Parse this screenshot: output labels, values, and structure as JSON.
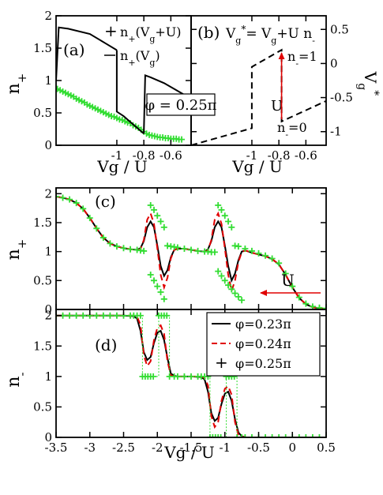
{
  "chart_data": [
    {
      "panel": "(a)",
      "type": "line",
      "xlabel": "Vg / U",
      "ylabel": "n+",
      "xlim": [
        -1.45,
        -0.45
      ],
      "ylim": [
        0,
        2
      ],
      "xticks": [
        -1,
        -0.8,
        -0.6
      ],
      "xtick_labels": [
        "-1",
        "-0.8",
        "-0.6"
      ],
      "yticks": [
        0,
        0.5,
        1,
        1.5,
        2
      ],
      "ytick_labels": [
        "0",
        "0.5",
        "1",
        "1.5",
        "2"
      ],
      "annotation": "φ = 0.25π",
      "series": [
        {
          "name": "n+(Vg+U)",
          "style": "markers",
          "color": "#33dd33",
          "x": [
            -1.44,
            -1.42,
            -1.4,
            -1.38,
            -1.36,
            -1.34,
            -1.32,
            -1.3,
            -1.28,
            -1.26,
            -1.24,
            -1.22,
            -1.2,
            -1.18,
            -1.16,
            -1.14,
            -1.12,
            -1.1,
            -1.08,
            -1.06,
            -1.04,
            -1.02,
            -1.0,
            -0.98,
            -0.96,
            -0.94,
            -0.92,
            -0.9,
            -0.88,
            -0.86,
            -0.84,
            -0.82,
            -0.8,
            -0.78,
            -0.76,
            -0.74,
            -0.72,
            -0.7,
            -0.68,
            -0.66,
            -0.64,
            -0.62,
            -0.6,
            -0.58,
            -0.56,
            -0.54,
            -0.52
          ],
          "y": [
            0.87,
            0.85,
            0.83,
            0.81,
            0.79,
            0.77,
            0.75,
            0.72,
            0.7,
            0.68,
            0.66,
            0.63,
            0.61,
            0.59,
            0.57,
            0.55,
            0.53,
            0.51,
            0.49,
            0.47,
            0.45,
            0.44,
            0.42,
            0.4,
            0.39,
            0.37,
            0.35,
            0.34,
            0.31,
            0.29,
            0.27,
            0.24,
            0.21,
            0.18,
            0.16,
            0.15,
            0.14,
            0.13,
            0.12,
            0.12,
            0.11,
            0.11,
            0.1,
            0.1,
            0.1,
            0.09,
            0.09
          ]
        },
        {
          "name": "n+(Vg)",
          "style": "line",
          "color": "#000000",
          "segments": [
            {
              "x": [
                -1.45,
                -1.43,
                -1.36,
                -1.2,
                -1.08,
                -1.0
              ],
              "y": [
                1.0,
                1.82,
                1.8,
                1.72,
                1.57,
                1.47
              ]
            },
            {
              "x": [
                -1.0,
                -1.0,
                -0.95,
                -0.9,
                -0.85,
                -0.8
              ],
              "y": [
                1.47,
                0.52,
                0.45,
                0.36,
                0.27,
                0.18
              ]
            },
            {
              "x": [
                -0.8,
                -0.79,
                -0.75,
                -0.65,
                -0.55,
                -0.45
              ],
              "y": [
                0.18,
                1.08,
                1.05,
                0.96,
                0.84,
                0.72
              ]
            }
          ]
        }
      ]
    },
    {
      "panel": "(b)",
      "type": "line",
      "xlabel": "Vg / U",
      "ylabel": "Vg*",
      "title_formula": "Vg* = Vg+U n-",
      "xlim": [
        -1.45,
        -0.45
      ],
      "ylim": [
        -1.2,
        0.7
      ],
      "xticks": [
        -1,
        -0.8,
        -0.6
      ],
      "xtick_labels": [
        "-1",
        "-0.8",
        "-0.6"
      ],
      "yticks": [
        -1,
        -0.5,
        0,
        0.5
      ],
      "ytick_labels": [
        "-1",
        "-0.5",
        "0",
        "0.5"
      ],
      "annotations": {
        "upper": "n-=1",
        "lower": "n-=0",
        "arrow": "U"
      },
      "series": [
        {
          "name": "Vg*",
          "style": "dashed",
          "color": "#000000",
          "x": [
            -1.45,
            -1.0,
            -1.0,
            -0.78,
            -0.78,
            -0.45
          ],
          "y": [
            -1.2,
            -0.95,
            -0.05,
            0.2,
            -0.85,
            -0.55
          ]
        }
      ]
    },
    {
      "panel": "(c)",
      "type": "line",
      "xlabel": "",
      "ylabel": "n+",
      "xlim": [
        -3.5,
        0.5
      ],
      "ylim": [
        0,
        2.1
      ],
      "xticks": [
        -3.5,
        -3,
        -2.5,
        -2,
        -1.5,
        -1,
        -0.5,
        0,
        0.5
      ],
      "yticks": [
        0,
        0.5,
        1,
        1.5,
        2
      ],
      "ytick_labels": [
        "0",
        "0.5",
        "1",
        "1.5",
        "2"
      ],
      "annotation": "U",
      "series": [
        {
          "name": "φ=0.23π",
          "style": "solid",
          "color": "#000000",
          "x": [
            -3.5,
            -3.4,
            -3.3,
            -3.2,
            -3.1,
            -3.0,
            -2.9,
            -2.8,
            -2.7,
            -2.6,
            -2.5,
            -2.4,
            -2.3,
            -2.25,
            -2.2,
            -2.15,
            -2.1,
            -2.05,
            -2.0,
            -1.95,
            -1.9,
            -1.85,
            -1.8,
            -1.75,
            -1.7,
            -1.6,
            -1.5,
            -1.4,
            -1.3,
            -1.25,
            -1.2,
            -1.15,
            -1.1,
            -1.05,
            -1.0,
            -0.95,
            -0.9,
            -0.85,
            -0.8,
            -0.75,
            -0.7,
            -0.6,
            -0.5,
            -0.4,
            -0.3,
            -0.2,
            -0.1,
            0.0,
            0.1,
            0.2,
            0.3,
            0.4,
            0.5
          ],
          "y": [
            1.95,
            1.93,
            1.9,
            1.84,
            1.74,
            1.58,
            1.4,
            1.24,
            1.14,
            1.09,
            1.06,
            1.04,
            1.03,
            1.06,
            1.18,
            1.42,
            1.52,
            1.42,
            1.1,
            0.75,
            0.58,
            0.68,
            0.9,
            1.03,
            1.05,
            1.05,
            1.03,
            1.01,
            1.0,
            1.04,
            1.18,
            1.42,
            1.52,
            1.42,
            1.1,
            0.75,
            0.5,
            0.62,
            0.85,
            1.0,
            1.02,
            0.98,
            0.95,
            0.92,
            0.87,
            0.78,
            0.6,
            0.38,
            0.2,
            0.09,
            0.04,
            0.02,
            0.01
          ]
        },
        {
          "name": "φ=0.24π",
          "style": "dashed",
          "color": "#e00000",
          "x": [
            -3.5,
            -3.4,
            -3.3,
            -3.2,
            -3.1,
            -3.0,
            -2.9,
            -2.8,
            -2.7,
            -2.6,
            -2.5,
            -2.4,
            -2.3,
            -2.25,
            -2.2,
            -2.15,
            -2.1,
            -2.05,
            -2.0,
            -1.95,
            -1.9,
            -1.85,
            -1.8,
            -1.75,
            -1.7,
            -1.6,
            -1.5,
            -1.4,
            -1.3,
            -1.25,
            -1.2,
            -1.15,
            -1.1,
            -1.05,
            -1.0,
            -0.95,
            -0.9,
            -0.85,
            -0.8,
            -0.75,
            -0.7,
            -0.6,
            -0.5,
            -0.4,
            -0.3,
            -0.2,
            -0.1,
            0.0,
            0.1,
            0.2,
            0.3,
            0.4,
            0.5
          ],
          "y": [
            1.95,
            1.93,
            1.9,
            1.84,
            1.74,
            1.58,
            1.4,
            1.24,
            1.14,
            1.09,
            1.06,
            1.04,
            1.03,
            1.04,
            1.2,
            1.55,
            1.66,
            1.48,
            1.05,
            0.6,
            0.38,
            0.55,
            0.88,
            1.03,
            1.05,
            1.05,
            1.03,
            1.01,
            1.0,
            1.02,
            1.2,
            1.55,
            1.66,
            1.48,
            1.05,
            0.6,
            0.32,
            0.5,
            0.82,
            0.99,
            1.02,
            0.98,
            0.95,
            0.92,
            0.87,
            0.78,
            0.6,
            0.38,
            0.2,
            0.09,
            0.04,
            0.02,
            0.01
          ]
        },
        {
          "name": "φ=0.25π",
          "style": "markers",
          "color": "#33dd33",
          "segments": [
            {
              "x": [
                -3.5,
                -3.4,
                -3.3,
                -3.2,
                -3.1,
                -3.0,
                -2.9,
                -2.8,
                -2.7,
                -2.6,
                -2.5,
                -2.4,
                -2.3,
                -2.25,
                -2.2
              ],
              "y": [
                1.95,
                1.93,
                1.9,
                1.84,
                1.74,
                1.58,
                1.4,
                1.24,
                1.14,
                1.09,
                1.06,
                1.04,
                1.03,
                1.02,
                1.01
              ]
            },
            {
              "x": [
                -2.1,
                -2.05,
                -2.0,
                -1.95,
                -1.9
              ],
              "y": [
                1.8,
                1.72,
                1.62,
                1.52,
                1.42
              ]
            },
            {
              "x": [
                -2.1,
                -2.05,
                -2.0,
                -1.95,
                -1.9
              ],
              "y": [
                0.6,
                0.5,
                0.4,
                0.3,
                0.18
              ]
            },
            {
              "x": [
                -1.85,
                -1.8,
                -1.75,
                -1.7,
                -1.6,
                -1.5,
                -1.4,
                -1.3,
                -1.25,
                -1.2,
                -1.15
              ],
              "y": [
                1.1,
                1.09,
                1.08,
                1.07,
                1.05,
                1.03,
                1.01,
                1.0,
                1.0,
                0.99,
                0.99
              ]
            },
            {
              "x": [
                -1.1,
                -1.05,
                -1.0,
                -0.95,
                -0.9
              ],
              "y": [
                1.8,
                1.72,
                1.62,
                1.52,
                1.42
              ]
            },
            {
              "x": [
                -1.1,
                -1.05,
                -1.0,
                -0.95,
                -0.9,
                -0.85,
                -0.8,
                -0.75
              ],
              "y": [
                0.66,
                0.58,
                0.5,
                0.42,
                0.35,
                0.28,
                0.22,
                0.16
              ]
            },
            {
              "x": [
                -0.85,
                -0.8,
                -0.7,
                -0.6,
                -0.5,
                -0.4,
                -0.3,
                -0.2,
                -0.1,
                0.0,
                0.1,
                0.2,
                0.3,
                0.4,
                0.5
              ],
              "y": [
                1.1,
                1.09,
                1.05,
                1.01,
                0.97,
                0.93,
                0.88,
                0.8,
                0.62,
                0.4,
                0.21,
                0.1,
                0.05,
                0.03,
                0.02
              ]
            }
          ]
        }
      ]
    },
    {
      "panel": "(d)",
      "type": "line",
      "xlabel": "Vg / U",
      "ylabel": "n-",
      "xlim": [
        -3.5,
        0.5
      ],
      "ylim": [
        0,
        2.1
      ],
      "xticks": [
        -3.5,
        -3,
        -2.5,
        -2,
        -1.5,
        -1,
        -0.5,
        0,
        0.5
      ],
      "xtick_labels": [
        "-3.5",
        "-3",
        "-2.5",
        "-2",
        "-1.5",
        "-1",
        "-0.5",
        "0",
        "0.5"
      ],
      "yticks": [
        0,
        0.5,
        1,
        1.5,
        2
      ],
      "ytick_labels": [
        "0",
        "0.5",
        "1",
        "1.5",
        "2"
      ],
      "legend_position": "top-right",
      "series": [
        {
          "name": "φ=0.23π",
          "style": "solid",
          "color": "#000000",
          "x": [
            -3.5,
            -2.5,
            -2.35,
            -2.3,
            -2.25,
            -2.2,
            -2.15,
            -2.1,
            -2.05,
            -2.0,
            -1.95,
            -1.9,
            -1.85,
            -1.8,
            -1.75,
            -1.7,
            -1.5,
            -1.35,
            -1.3,
            -1.25,
            -1.2,
            -1.15,
            -1.1,
            -1.05,
            -1.0,
            -0.95,
            -0.9,
            -0.85,
            -0.8,
            -0.75,
            -0.7,
            -0.5,
            0.5
          ],
          "y": [
            2.0,
            2.0,
            1.99,
            1.95,
            1.75,
            1.4,
            1.27,
            1.32,
            1.55,
            1.72,
            1.75,
            1.6,
            1.3,
            1.05,
            1.01,
            1.0,
            1.0,
            0.99,
            0.95,
            0.75,
            0.4,
            0.27,
            0.32,
            0.55,
            0.72,
            0.75,
            0.6,
            0.3,
            0.08,
            0.02,
            0.0,
            0.0,
            0.0
          ]
        },
        {
          "name": "φ=0.24π",
          "style": "dashed",
          "color": "#e00000",
          "x": [
            -3.5,
            -2.5,
            -2.35,
            -2.3,
            -2.25,
            -2.2,
            -2.15,
            -2.1,
            -2.05,
            -2.0,
            -1.95,
            -1.9,
            -1.85,
            -1.8,
            -1.75,
            -1.7,
            -1.5,
            -1.35,
            -1.3,
            -1.25,
            -1.2,
            -1.15,
            -1.1,
            -1.05,
            -1.0,
            -0.95,
            -0.9,
            -0.85,
            -0.8,
            -0.75,
            -0.7,
            -0.5,
            0.5
          ],
          "y": [
            2.0,
            2.0,
            2.0,
            1.98,
            1.85,
            1.35,
            1.17,
            1.25,
            1.6,
            1.8,
            1.84,
            1.7,
            1.25,
            1.02,
            1.0,
            1.0,
            1.0,
            1.0,
            0.98,
            0.85,
            0.35,
            0.17,
            0.25,
            0.6,
            0.8,
            0.84,
            0.7,
            0.25,
            0.04,
            0.01,
            0.0,
            0.0,
            0.0
          ]
        },
        {
          "name": "φ=0.25π",
          "style": "markers",
          "color": "#33dd33",
          "segments": [
            {
              "x": [
                -3.5,
                -3.4,
                -3.3,
                -3.2,
                -3.1,
                -3.0,
                -2.9,
                -2.8,
                -2.7,
                -2.6,
                -2.5,
                -2.4,
                -2.35,
                -2.3,
                -2.25
              ],
              "y": [
                2,
                2,
                2,
                2,
                2,
                2,
                2,
                2,
                2,
                2,
                2,
                2,
                2,
                2,
                2
              ]
            },
            {
              "x": [
                -2.22,
                -2.18,
                -2.14,
                -2.1,
                -2.06
              ],
              "y": [
                1,
                1,
                1,
                1,
                1
              ]
            },
            {
              "x": [
                -1.98,
                -1.94,
                -1.9,
                -1.86
              ],
              "y": [
                2,
                2,
                2,
                2
              ]
            },
            {
              "x": [
                -1.82,
                -1.75,
                -1.7,
                -1.6,
                -1.5,
                -1.4,
                -1.35,
                -1.3,
                -1.25
              ],
              "y": [
                1,
                1,
                1,
                1,
                1,
                1,
                1,
                1,
                1
              ]
            },
            {
              "x": [
                -1.22,
                -1.18,
                -1.14,
                -1.1,
                -1.06
              ],
              "y": [
                0,
                0,
                0,
                0,
                0
              ]
            },
            {
              "x": [
                -0.98,
                -0.94,
                -0.9,
                -0.86
              ],
              "y": [
                1,
                1,
                1,
                1
              ]
            },
            {
              "x": [
                -0.82,
                -0.75,
                -0.7,
                -0.6,
                -0.5,
                -0.4,
                -0.3,
                -0.2,
                -0.1,
                0.0,
                0.1,
                0.2,
                0.3,
                0.4,
                0.5
              ],
              "y": [
                0,
                0,
                0,
                0,
                0,
                0,
                0,
                0,
                0,
                0,
                0,
                0,
                0,
                0,
                0
              ]
            }
          ]
        }
      ]
    }
  ]
}
